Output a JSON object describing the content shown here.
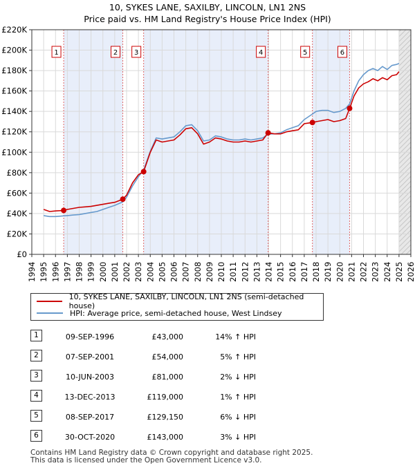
{
  "title_line1": "10, SYKES LANE, SAXILBY, LINCOLN, LN1 2NS",
  "title_line2": "Price paid vs. HM Land Registry's House Price Index (HPI)",
  "chart_data": {
    "type": "line",
    "title": "10, SYKES LANE, SAXILBY, LINCOLN, LN1 2NS - Price paid vs. HM Land Registry's House Price Index (HPI)",
    "xlabel": "",
    "ylabel": "",
    "xlim": [
      1994,
      2026
    ],
    "ylim": [
      0,
      220000
    ],
    "y_ticks": [
      0,
      20000,
      40000,
      60000,
      80000,
      100000,
      120000,
      140000,
      160000,
      180000,
      200000,
      220000
    ],
    "y_tick_labels": [
      "£0",
      "£20K",
      "£40K",
      "£60K",
      "£80K",
      "£100K",
      "£120K",
      "£140K",
      "£160K",
      "£180K",
      "£200K",
      "£220K"
    ],
    "x_ticks": [
      1994,
      1995,
      1996,
      1997,
      1998,
      1999,
      2000,
      2001,
      2002,
      2003,
      2004,
      2005,
      2006,
      2007,
      2008,
      2009,
      2010,
      2011,
      2012,
      2013,
      2014,
      2015,
      2016,
      2017,
      2018,
      2019,
      2020,
      2021,
      2022,
      2023,
      2024,
      2025,
      2026
    ],
    "x_tick_labels": [
      "1994",
      "1995",
      "1996",
      "1997",
      "1998",
      "1999",
      "2000",
      "2001",
      "2002",
      "2003",
      "2004",
      "2005",
      "2006",
      "2007",
      "2008",
      "2009",
      "2010",
      "2011",
      "2012",
      "2013",
      "2014",
      "2015",
      "2016",
      "2017",
      "2018",
      "2019",
      "2020",
      "2021",
      "2022",
      "2023",
      "2024",
      "2025",
      "2026"
    ],
    "grid": true,
    "shaded_ranges": [
      [
        1996.69,
        2001.68
      ],
      [
        2003.44,
        2013.95
      ],
      [
        2017.69,
        2020.83
      ]
    ],
    "future_hatch_from": 2025.0,
    "series": [
      {
        "name": "10, SYKES LANE, SAXILBY, LINCOLN, LN1 2NS (semi-detached house)",
        "color": "#cc0000",
        "x": [
          1995.0,
          1995.5,
          1996.0,
          1996.69,
          1997.0,
          1997.5,
          1998.0,
          1998.5,
          1999.0,
          1999.5,
          2000.0,
          2000.5,
          2001.0,
          2001.68,
          2002.0,
          2002.5,
          2003.0,
          2003.44,
          2004.0,
          2004.5,
          2005.0,
          2005.5,
          2006.0,
          2006.5,
          2007.0,
          2007.5,
          2008.0,
          2008.5,
          2009.0,
          2009.5,
          2010.0,
          2010.5,
          2011.0,
          2011.5,
          2012.0,
          2012.5,
          2013.0,
          2013.5,
          2013.95,
          2014.5,
          2015.0,
          2015.5,
          2016.0,
          2016.5,
          2017.0,
          2017.69,
          2018.0,
          2018.5,
          2019.0,
          2019.5,
          2020.0,
          2020.5,
          2020.83,
          2021.2,
          2021.6,
          2022.0,
          2022.4,
          2022.8,
          2023.2,
          2023.6,
          2024.0,
          2024.4,
          2024.8,
          2025.0
        ],
        "values": [
          44000,
          42000,
          42500,
          43000,
          44000,
          45000,
          46000,
          46500,
          47000,
          48000,
          49000,
          50000,
          51000,
          54000,
          58000,
          70000,
          78000,
          81000,
          100000,
          112000,
          110000,
          111000,
          112000,
          117000,
          123000,
          124000,
          118000,
          108000,
          110000,
          114000,
          113000,
          111000,
          110000,
          110000,
          111000,
          110000,
          111000,
          112000,
          119000,
          118000,
          118000,
          120000,
          121000,
          122000,
          128000,
          129150,
          130000,
          131000,
          132000,
          130000,
          131000,
          133000,
          143000,
          155000,
          163000,
          167000,
          169000,
          172000,
          170000,
          173000,
          171000,
          175000,
          176000,
          179000
        ]
      },
      {
        "name": "HPI: Average price, semi-detached house, West Lindsey",
        "color": "#6699cc",
        "x": [
          1995.0,
          1995.5,
          1996.0,
          1996.69,
          1997.0,
          1997.5,
          1998.0,
          1998.5,
          1999.0,
          1999.5,
          2000.0,
          2000.5,
          2001.0,
          2001.68,
          2002.0,
          2002.5,
          2003.0,
          2003.44,
          2004.0,
          2004.5,
          2005.0,
          2005.5,
          2006.0,
          2006.5,
          2007.0,
          2007.5,
          2008.0,
          2008.5,
          2009.0,
          2009.5,
          2010.0,
          2010.5,
          2011.0,
          2011.5,
          2012.0,
          2012.5,
          2013.0,
          2013.5,
          2013.95,
          2014.5,
          2015.0,
          2015.5,
          2016.0,
          2016.5,
          2017.0,
          2017.69,
          2018.0,
          2018.5,
          2019.0,
          2019.5,
          2020.0,
          2020.5,
          2020.83,
          2021.2,
          2021.6,
          2022.0,
          2022.4,
          2022.8,
          2023.2,
          2023.6,
          2024.0,
          2024.4,
          2024.8,
          2025.0
        ],
        "values": [
          38000,
          37000,
          37000,
          37700,
          38000,
          38500,
          39000,
          40000,
          41000,
          42000,
          44000,
          46000,
          48000,
          51400,
          56000,
          67000,
          76000,
          82600,
          101000,
          114000,
          113000,
          114000,
          115000,
          120000,
          126000,
          127000,
          121000,
          111000,
          112000,
          116000,
          115000,
          113000,
          112000,
          112000,
          113000,
          112000,
          113000,
          114000,
          117800,
          118000,
          119000,
          122000,
          124000,
          126000,
          132000,
          137400,
          140000,
          141000,
          141000,
          139000,
          140000,
          143000,
          147400,
          160000,
          170000,
          176000,
          180000,
          182000,
          180000,
          184000,
          181000,
          185000,
          186000,
          187000
        ]
      }
    ],
    "sales": [
      {
        "n": "1",
        "x": 1996.69,
        "y": 43000
      },
      {
        "n": "2",
        "x": 2001.68,
        "y": 54000
      },
      {
        "n": "3",
        "x": 2003.44,
        "y": 81000
      },
      {
        "n": "4",
        "x": 2013.95,
        "y": 119000
      },
      {
        "n": "5",
        "x": 2017.69,
        "y": 129150
      },
      {
        "n": "6",
        "x": 2020.83,
        "y": 143000
      }
    ]
  },
  "legend": {
    "property_label": "10, SYKES LANE, SAXILBY, LINCOLN, LN1 2NS (semi-detached house)",
    "hpi_label": "HPI: Average price, semi-detached house, West Lindsey"
  },
  "sales_table": [
    {
      "n": "1",
      "date": "09-SEP-1996",
      "price": "£43,000",
      "hpi": "14% ↑ HPI"
    },
    {
      "n": "2",
      "date": "07-SEP-2001",
      "price": "£54,000",
      "hpi": "5% ↑ HPI"
    },
    {
      "n": "3",
      "date": "10-JUN-2003",
      "price": "£81,000",
      "hpi": "2% ↓ HPI"
    },
    {
      "n": "4",
      "date": "13-DEC-2013",
      "price": "£119,000",
      "hpi": "1% ↑ HPI"
    },
    {
      "n": "5",
      "date": "08-SEP-2017",
      "price": "£129,150",
      "hpi": "6% ↓ HPI"
    },
    {
      "n": "6",
      "date": "30-OCT-2020",
      "price": "£143,000",
      "hpi": "3% ↓ HPI"
    }
  ],
  "footer_line1": "Contains HM Land Registry data © Crown copyright and database right 2025.",
  "footer_line2": "This data is licensed under the Open Government Licence v3.0."
}
